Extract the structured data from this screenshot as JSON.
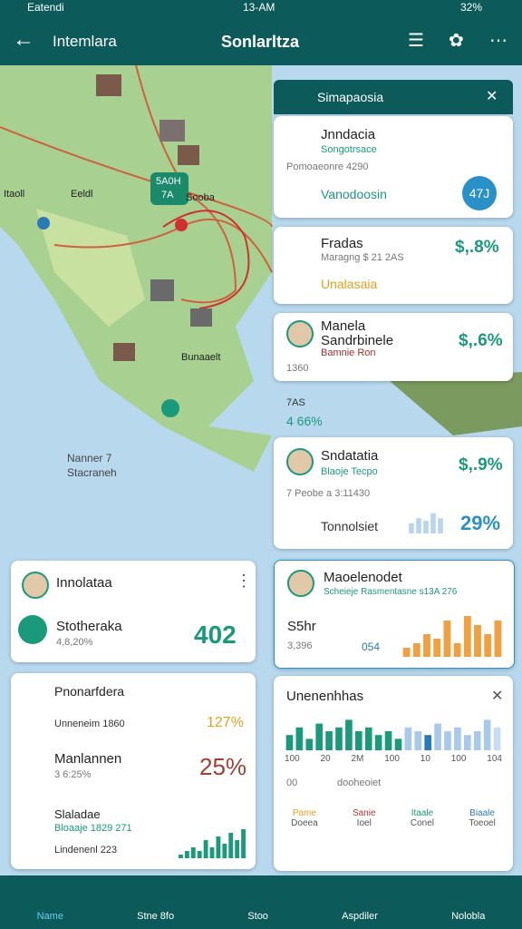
{
  "status_bar": {
    "carrier": "Eatendi",
    "time": "13-AM",
    "battery": "32%"
  },
  "top_bar": {
    "back_label": "Intemlara",
    "title": "Sonlarltza"
  },
  "map": {
    "labels": [
      "Nanner 7",
      "Stacraneh",
      "Sooba",
      "Itaoll",
      "Eeldl",
      "Bunaaelt",
      "5A0H",
      "7A"
    ]
  },
  "panel": {
    "title": "Simapaosia",
    "cards": [
      {
        "title": "Jnndacia",
        "subtitle": "Songotrsace",
        "meta": "Pomoaeonre 4290",
        "action": "Vanodoosin",
        "badge": "47J"
      },
      {
        "title": "Fradas",
        "meta": "Maragng $ 21 2AS",
        "value": "$,.8%",
        "action": "Unalasaia"
      },
      {
        "title": "Manela",
        "subtitle": "Sandrbinele",
        "meta": "Bamnie Ron",
        "value": "$,.6%",
        "note": "1360",
        "extra": "7AS",
        "stat": "4 66%"
      },
      {
        "title": "Sndatatia",
        "subtitle": "Blaoje Tecpo",
        "value": "$,.9%",
        "meta": "7 Peobe a 3:11430",
        "action": "Tonnolsiet",
        "stat": "29%",
        "bars": {
          "values": [
            4,
            6,
            5,
            8,
            6
          ],
          "ylim": [
            0,
            10
          ],
          "color": "#b8d4f0"
        }
      },
      {
        "title": "Maoelenodet",
        "subtitle": "Scheieje Rasmentasne s13A 276",
        "label": "S5hr",
        "meta": "3,396",
        "badge": "054",
        "bars": {
          "values": [
            2,
            3,
            5,
            4,
            8,
            3,
            9,
            7,
            5,
            8
          ],
          "ylim": [
            0,
            10
          ],
          "color": "#f0a040"
        }
      },
      {
        "title": "Unenenhhas",
        "bars": {
          "values": [
            4,
            6,
            3,
            7,
            5,
            6,
            8,
            5,
            6,
            4,
            5,
            3,
            6,
            5,
            4,
            7,
            5,
            6,
            4,
            5,
            8,
            6
          ],
          "ylim": [
            0,
            10
          ],
          "colors": [
            "#1a9a7a",
            "#1a9a7a",
            "#1a9a7a",
            "#1a9a7a",
            "#1a9a7a",
            "#1a9a7a",
            "#1a9a7a",
            "#1a9a7a",
            "#1a9a7a",
            "#1a9a7a",
            "#1a9a7a",
            "#1a9a7a",
            "#a8c8ec",
            "#a8c8ec",
            "#2a7ab8",
            "#a8c8ec",
            "#a8c8ec",
            "#a8c8ec",
            "#a8c8ec",
            "#a8c8ec",
            "#a8c8ec",
            "#c8dcf4"
          ]
        },
        "axis_labels": [
          "100",
          "20",
          "2M",
          "100",
          "10",
          "100",
          "104"
        ],
        "legend": [
          "00",
          "dooheoiet"
        ],
        "items": [
          {
            "name": "Pame",
            "sub": "Doeea"
          },
          {
            "name": "Sanie",
            "sub": "Ioel"
          },
          {
            "name": "Itaale",
            "sub": "Conel"
          },
          {
            "name": "Biaale",
            "sub": "Toeoel"
          }
        ]
      }
    ]
  },
  "left": {
    "cards": [
      {
        "title": "Innolataa",
        "name": "Stotheraka",
        "meta": "4,8,20%",
        "value": "402"
      },
      {
        "rows": [
          {
            "name": "Pnonarfdera"
          },
          {
            "name": "Unneneim 1860",
            "value": "127%"
          },
          {
            "name": "Manlannen",
            "meta": "3 6:25%",
            "value": "25%"
          },
          {
            "name": "Slaladae",
            "meta": "Bloaaje 1829 271"
          },
          {
            "name": "Lindenenl 223"
          }
        ],
        "bars": {
          "values": [
            1,
            2,
            3,
            2,
            5,
            3,
            6,
            4,
            7,
            5,
            8
          ],
          "ylim": [
            0,
            10
          ],
          "color": "#1a9a7a"
        }
      }
    ]
  },
  "nav": [
    "Name",
    "Stne 8fo",
    "Stoo",
    "Aspdiler",
    "Nolobla"
  ]
}
